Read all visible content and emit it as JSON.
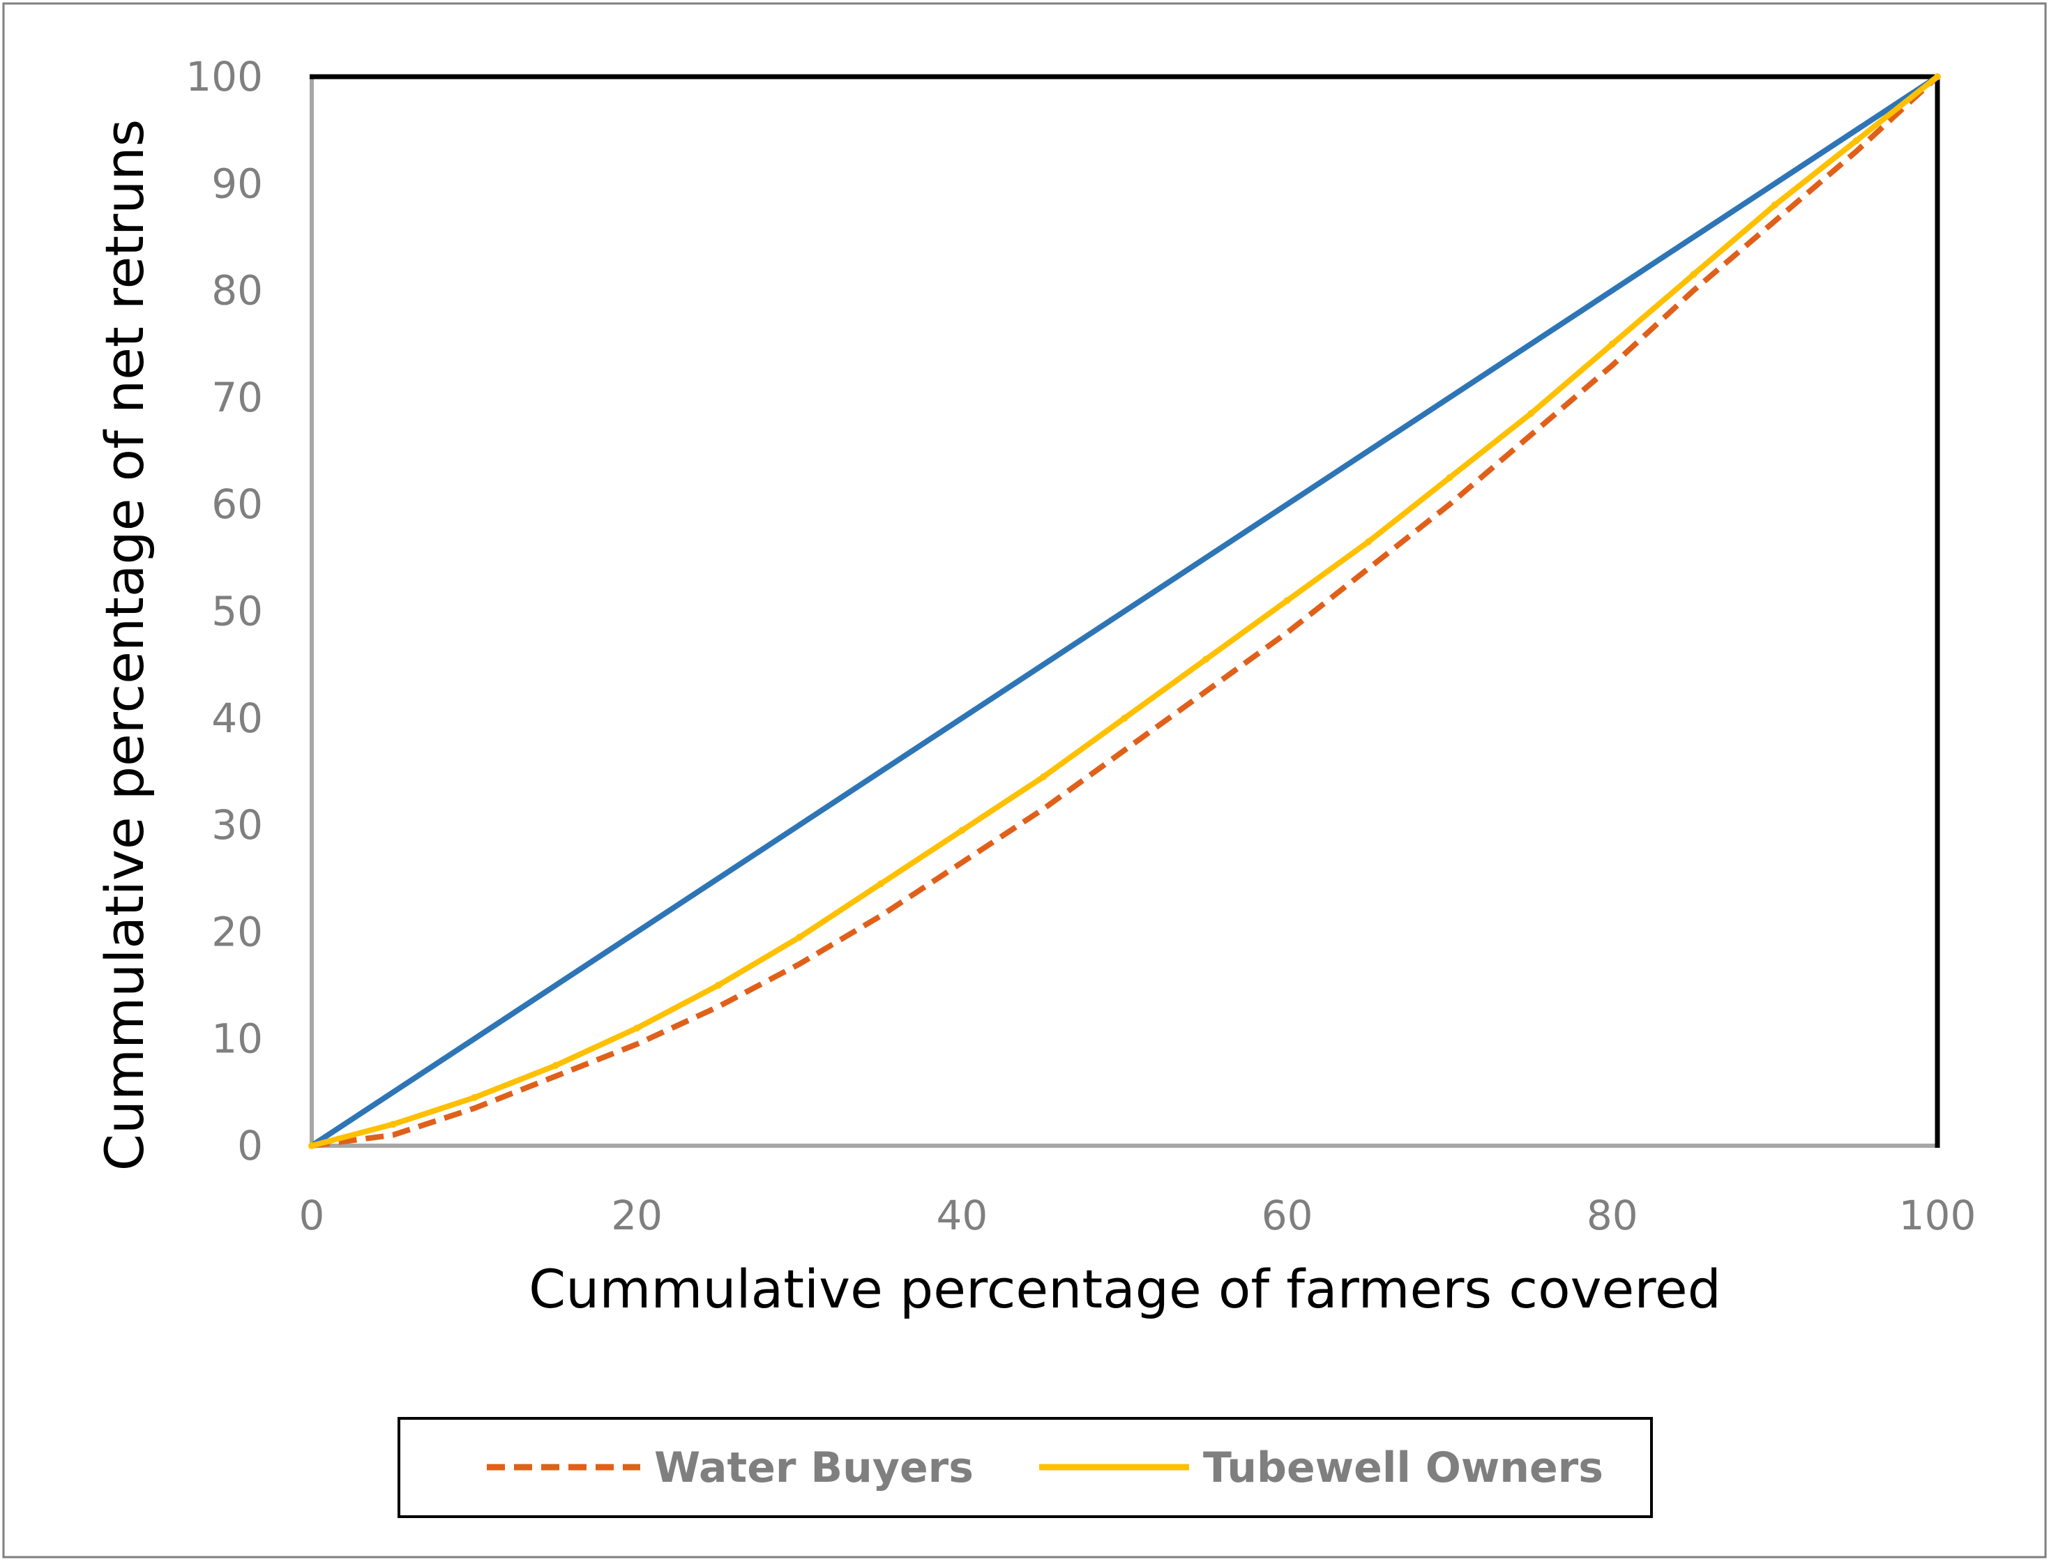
{
  "chart_data": {
    "type": "line",
    "title": "",
    "xlabel": "Cummulative percentage of farmers covered",
    "ylabel": "Cummulative percentage of net retruns",
    "xlim": [
      0,
      100
    ],
    "ylim": [
      0,
      100
    ],
    "x_ticks": [
      "0",
      "20",
      "40",
      "60",
      "80",
      "100"
    ],
    "y_ticks": [
      "0",
      "10",
      "20",
      "30",
      "40",
      "50",
      "60",
      "70",
      "80",
      "90",
      "100"
    ],
    "grid": false,
    "legend_position": "bottom",
    "series": [
      {
        "legend": false,
        "color": "#2e75b6",
        "style": "solid",
        "x": [
          0,
          100
        ],
        "y": [
          0,
          100
        ]
      },
      {
        "name": "Water Buyers",
        "legend": true,
        "color": "#e0601a",
        "style": "dashed",
        "x": [
          0,
          5,
          10,
          15,
          20,
          25,
          30,
          35,
          40,
          45,
          50,
          55,
          60,
          65,
          70,
          75,
          80,
          85,
          90,
          95,
          100
        ],
        "y": [
          0,
          1,
          3.5,
          6.5,
          9.5,
          13,
          17,
          21.5,
          26.5,
          31.5,
          37,
          42.5,
          48,
          54,
          60,
          66.5,
          73,
          80,
          86.5,
          93,
          100
        ]
      },
      {
        "name": "Tubewell Owners",
        "legend": true,
        "color": "#ffc000",
        "style": "solid",
        "x": [
          0,
          5,
          10,
          15,
          20,
          25,
          30,
          35,
          40,
          45,
          50,
          55,
          60,
          65,
          70,
          75,
          80,
          85,
          90,
          95,
          100
        ],
        "y": [
          0,
          2,
          4.5,
          7.5,
          11,
          15,
          19.5,
          24.5,
          29.5,
          34.5,
          40,
          45.5,
          51,
          56.5,
          62.5,
          68.5,
          75,
          81.5,
          88,
          94,
          100
        ]
      }
    ]
  }
}
